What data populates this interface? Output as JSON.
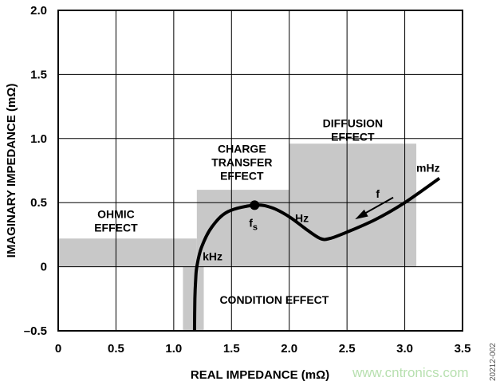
{
  "chart_data": {
    "type": "line",
    "title": "",
    "xlabel": "REAL IMPEDANCE (mΩ)",
    "ylabel": "IMAGINARY IMPEDANCE (mΩ)",
    "xlim": [
      0,
      3.5
    ],
    "ylim": [
      -0.5,
      2.0
    ],
    "grid": true,
    "x_ticks": [
      "0",
      "0.5",
      "1.0",
      "1.5",
      "2.0",
      "2.5",
      "3.0",
      "3.5"
    ],
    "y_ticks": [
      "–0.5",
      "0",
      "0.5",
      "1.0",
      "1.5",
      "2.0"
    ],
    "x_tick_values": [
      0,
      0.5,
      1.0,
      1.5,
      2.0,
      2.5,
      3.0,
      3.5
    ],
    "y_tick_values": [
      -0.5,
      0,
      0.5,
      1.0,
      1.5,
      2.0
    ],
    "regions": [
      {
        "name": "ohmic",
        "label": [
          "OHMIC",
          "EFFECT"
        ],
        "x": [
          0,
          1.2
        ],
        "y": [
          0,
          0.22
        ]
      },
      {
        "name": "charge-transfer",
        "label": [
          "CHARGE",
          "TRANSFER",
          "EFFECT"
        ],
        "x": [
          1.2,
          2.0
        ],
        "y": [
          0,
          0.6
        ]
      },
      {
        "name": "diffusion",
        "label": [
          "DIFFUSION",
          "EFFECT"
        ],
        "x": [
          2.0,
          3.1
        ],
        "y": [
          0,
          0.96
        ]
      },
      {
        "name": "condition",
        "label": [
          "CONDITION EFFECT"
        ],
        "x": [
          1.08,
          1.26
        ],
        "y": [
          -0.5,
          0
        ]
      }
    ],
    "region_color": "#c8c8c8",
    "series": [
      {
        "x": [
          1.18,
          1.183,
          1.19,
          1.2,
          1.24,
          1.33,
          1.47,
          1.7,
          1.85,
          2.0,
          2.15,
          2.27,
          2.35,
          2.5,
          2.75,
          3.0,
          3.3
        ],
        "y": [
          -0.5,
          -0.25,
          -0.1,
          0.0,
          0.15,
          0.31,
          0.43,
          0.48,
          0.46,
          0.39,
          0.29,
          0.22,
          0.22,
          0.27,
          0.37,
          0.5,
          0.69
        ],
        "color": "#000000"
      }
    ],
    "marker": {
      "label": "f",
      "subscript": "s",
      "x": 1.7,
      "y": 0.48
    },
    "annotations": [
      {
        "text": "kHz",
        "x": 1.25,
        "y": 0.05
      },
      {
        "text": "Hz",
        "x": 2.05,
        "y": 0.35
      },
      {
        "text": "mHz",
        "x": 3.1,
        "y": 0.74
      },
      {
        "text": "f",
        "x": 2.75,
        "y": 0.54
      }
    ],
    "arrow": {
      "label": "f",
      "from": [
        2.9,
        0.54
      ],
      "to": [
        2.57,
        0.37
      ]
    }
  },
  "figure_id": "20212-002",
  "watermark": "www.cntronics.com"
}
